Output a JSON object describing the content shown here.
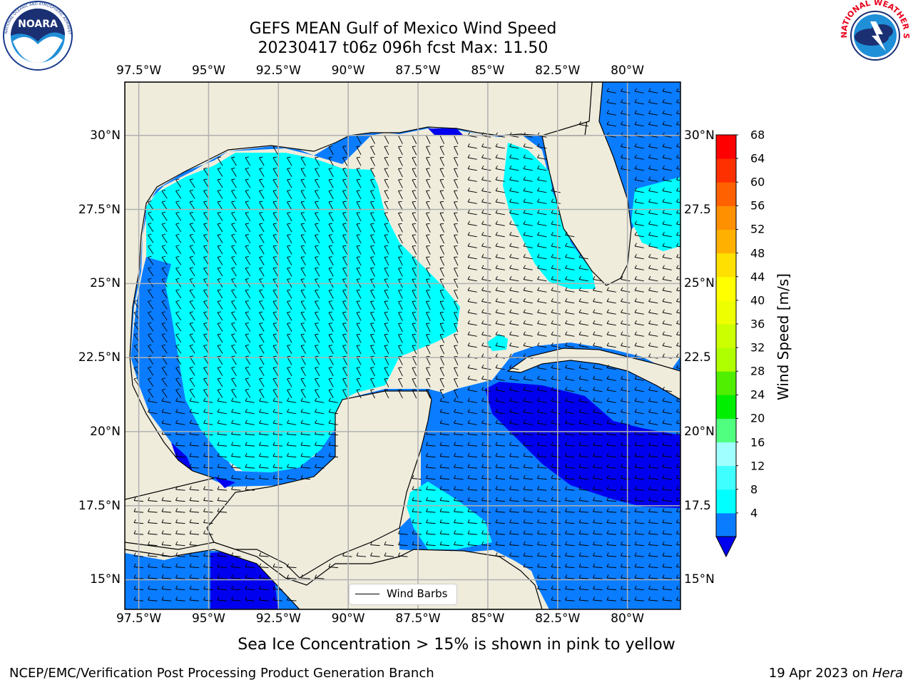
{
  "title": {
    "line1": "GEFS MEAN Gulf of Mexico Wind Speed",
    "line2": "20230417 t06z 096h fcst   Max: 11.50"
  },
  "logos": {
    "left": {
      "name": "NOARA",
      "ring_text": "NATIONAL OCEANIC AND ATMOSPHERIC ADMINISTRATION · U.S. DEPARTMENT OF COMMERCE"
    },
    "right": {
      "ring_text": "NATIONAL WEATHER SERVICE"
    }
  },
  "map": {
    "lon_ticks": [
      "97.5°W",
      "95°W",
      "92.5°W",
      "90°W",
      "87.5°W",
      "85°W",
      "82.5°W",
      "80°W"
    ],
    "lon_values": [
      -97.5,
      -95,
      -92.5,
      -90,
      -87.5,
      -85,
      -82.5,
      -80
    ],
    "lat_ticks_left": [
      "30°N",
      "27.5°N",
      "25°N",
      "22.5°N",
      "20°N",
      "17.5°N",
      "15°N"
    ],
    "lat_ticks_right": [
      "30°N",
      "27.5",
      "25°N",
      "22.5",
      "20°N",
      "17.5",
      "15°N"
    ],
    "lat_values": [
      30,
      27.5,
      25,
      22.5,
      20,
      17.5,
      15
    ],
    "lon_range": [
      -98,
      -78.1
    ],
    "lat_range": [
      14,
      31.8
    ],
    "land_color": "#efecdc",
    "gridline_color": "#b0b0b0",
    "legend_label": "Wind Barbs"
  },
  "colorbar": {
    "title": "Wind Speed [m/s]",
    "labels": [
      "68",
      "64",
      "60",
      "56",
      "52",
      "48",
      "44",
      "40",
      "36",
      "32",
      "28",
      "24",
      "20",
      "16",
      "12",
      "8",
      "4"
    ],
    "bounds": [
      4,
      8,
      12,
      16,
      20,
      24,
      28,
      32,
      36,
      40,
      44,
      48,
      52,
      56,
      60,
      64,
      68
    ],
    "colors": [
      "#0a7cff",
      "#00ffff",
      "#40ffff",
      "#a0ffff",
      "#50ff80",
      "#00ee00",
      "#50ee00",
      "#b0ff00",
      "#ccff00",
      "#eeff00",
      "#ffff00",
      "#ffe000",
      "#ffb000",
      "#ff9000",
      "#ff6000",
      "#ff3000",
      "#ff0000"
    ],
    "extend_color": "#0000ee"
  },
  "fill_colors": {
    "c4": "#0a7cff",
    "c8": "#00ffff",
    "low": "#0000ee"
  },
  "caption": "Sea Ice Concentration > 15% is shown in pink to yellow",
  "footer": {
    "left": "NCEP/EMC/Verification Post Processing Product Generation Branch",
    "right_prefix": "19 Apr 2023 on ",
    "right_italic": "Hera"
  }
}
